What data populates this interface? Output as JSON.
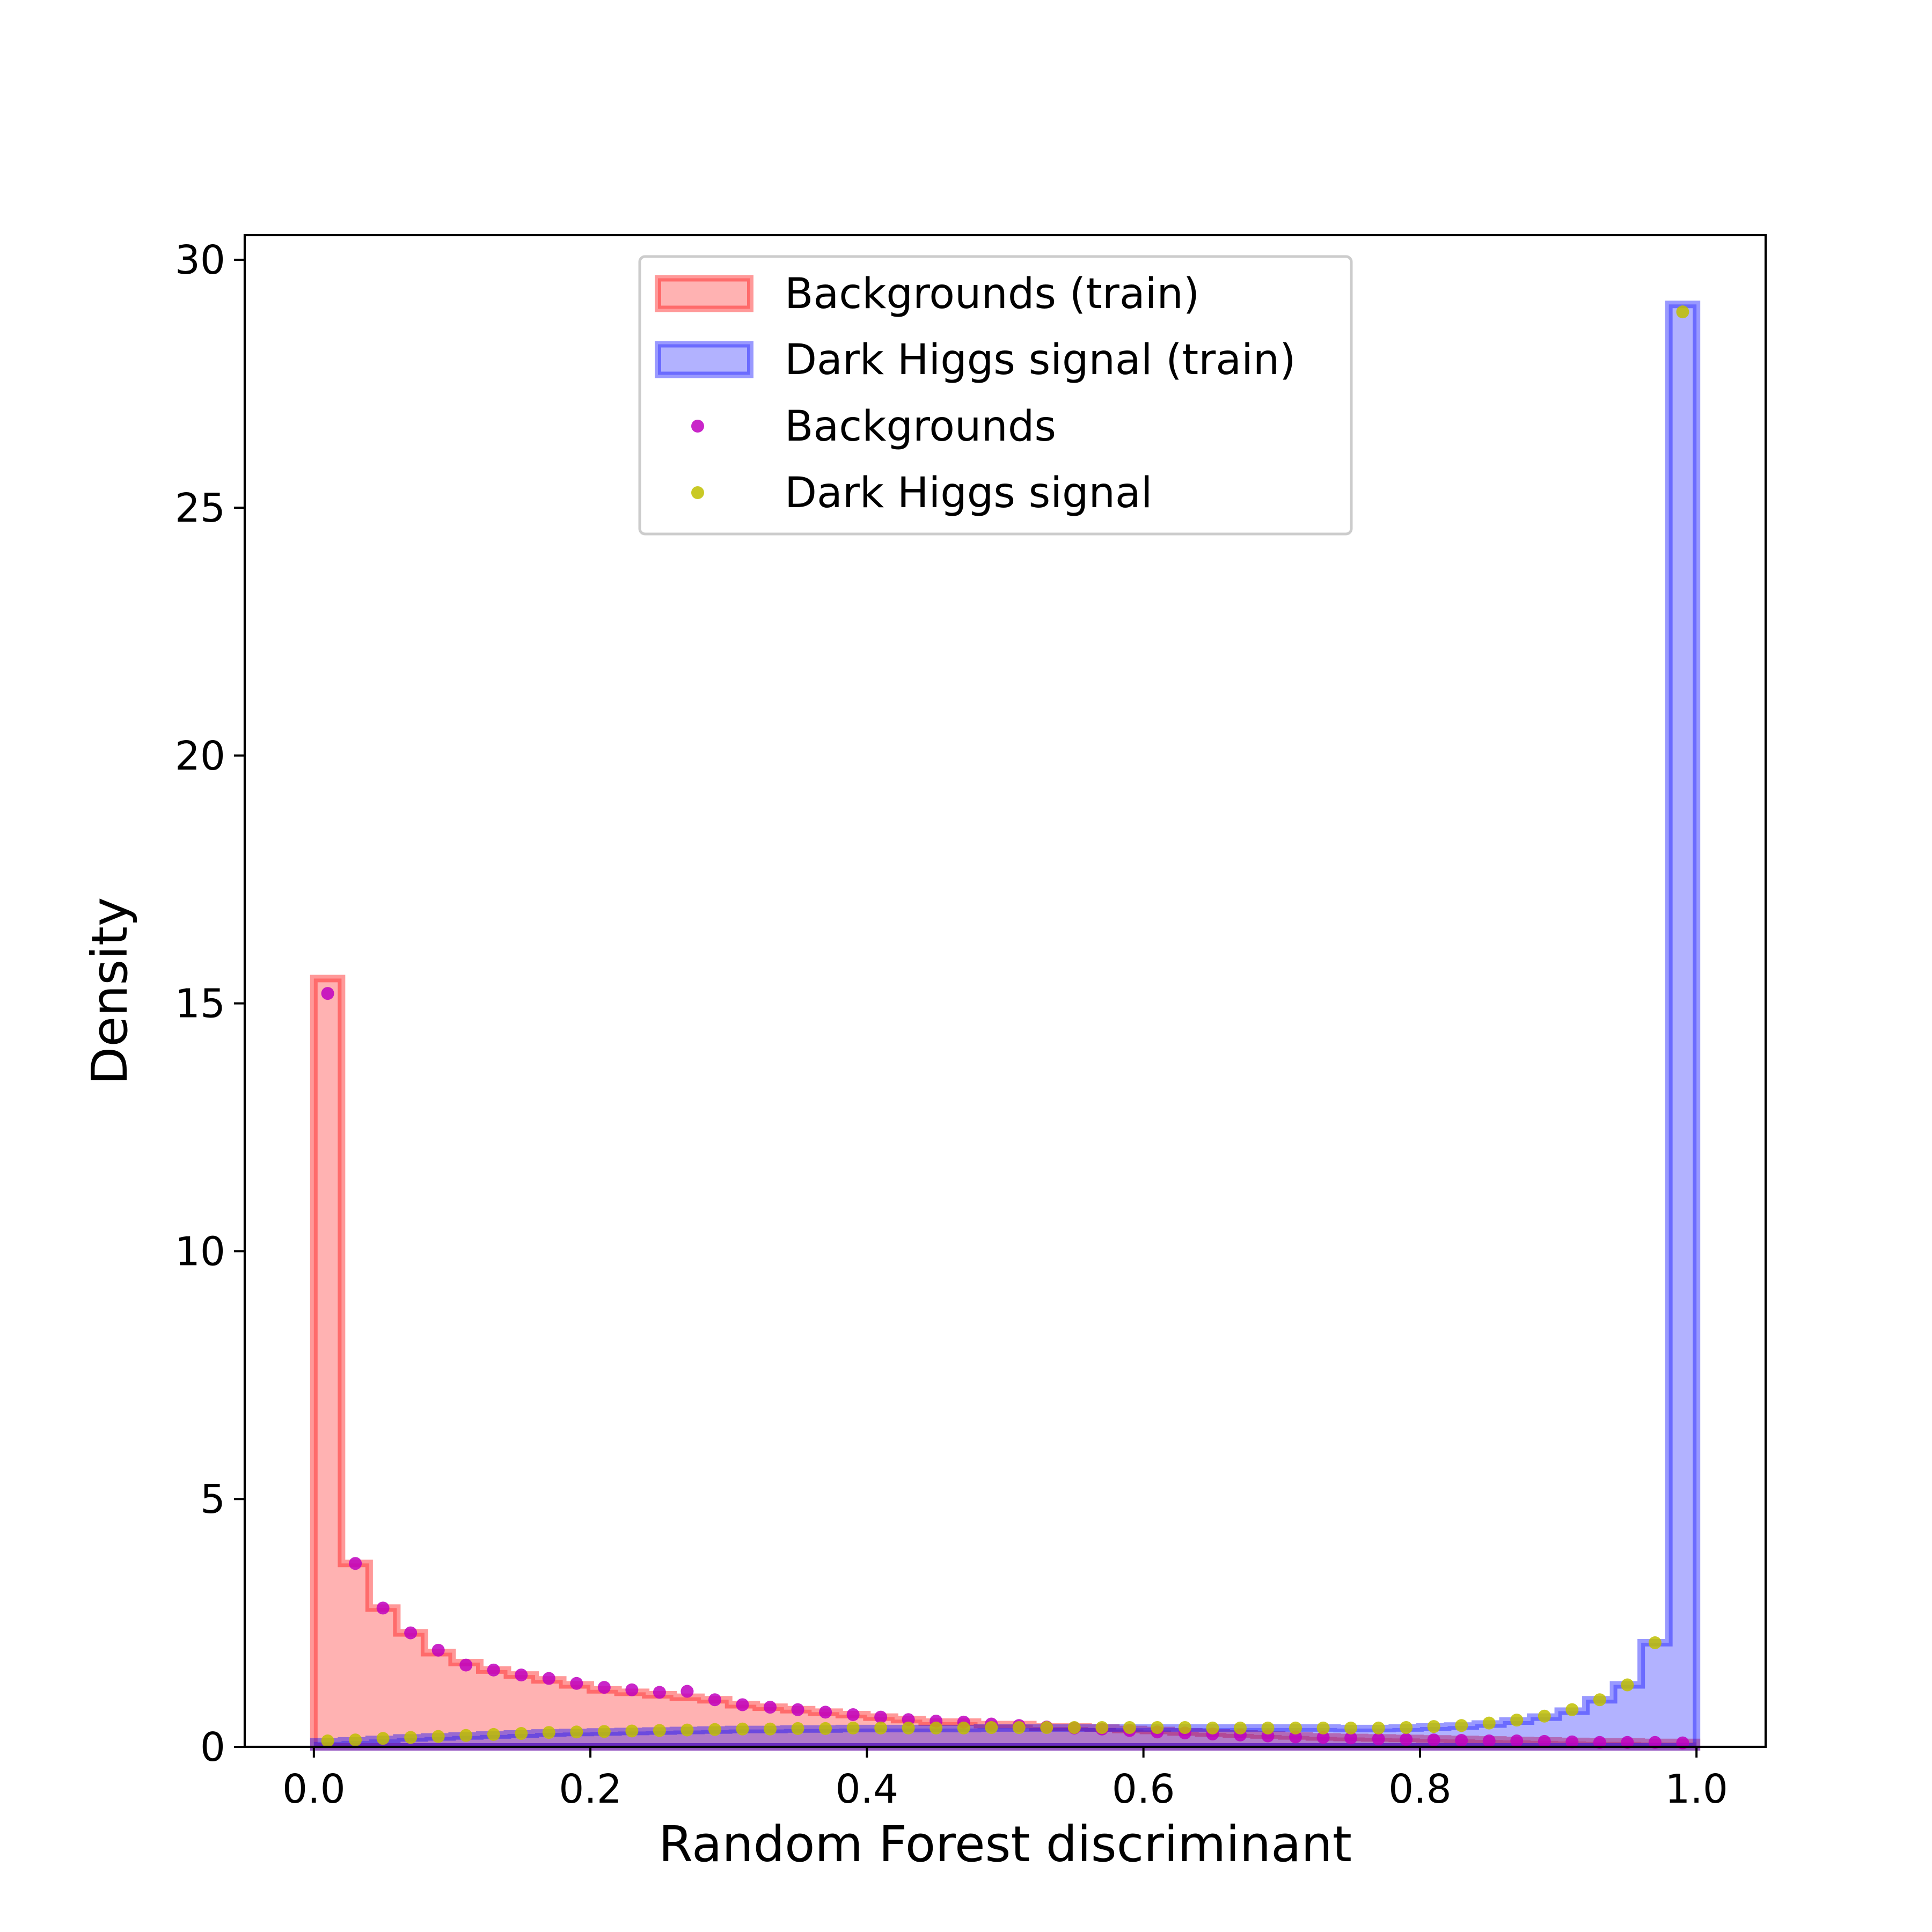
{
  "chart_data": {
    "type": "bar",
    "xlabel": "Random Forest discriminant",
    "ylabel": "Density",
    "xlim": [
      -0.05,
      1.05
    ],
    "ylim": [
      0,
      30.5
    ],
    "xticks": [
      0.0,
      0.2,
      0.4,
      0.6,
      0.8,
      1.0
    ],
    "xtick_labels": [
      "0.0",
      "0.2",
      "0.4",
      "0.6",
      "0.8",
      "1.0"
    ],
    "yticks": [
      0,
      5,
      10,
      15,
      20,
      25,
      30
    ],
    "ytick_labels": [
      "0",
      "5",
      "10",
      "15",
      "20",
      "25",
      "30"
    ],
    "grid": false,
    "legend_position": "upper-center",
    "bin_edges": [
      0,
      0.02,
      0.04,
      0.06,
      0.08,
      0.1,
      0.12,
      0.14,
      0.16,
      0.18,
      0.2,
      0.22,
      0.24,
      0.26,
      0.28,
      0.3,
      0.32,
      0.34,
      0.36,
      0.38,
      0.4,
      0.42,
      0.44,
      0.46,
      0.48,
      0.5,
      0.52,
      0.54,
      0.56,
      0.58,
      0.6,
      0.62,
      0.64,
      0.66,
      0.68,
      0.7,
      0.72,
      0.74,
      0.76,
      0.78,
      0.8,
      0.82,
      0.84,
      0.86,
      0.88,
      0.9,
      0.92,
      0.94,
      0.96,
      0.98,
      1.0
    ],
    "histograms": [
      {
        "name": "Backgrounds (train)",
        "fill": "#ff0000",
        "fill_opacity": 0.3,
        "edge": "#ff0000",
        "edge_opacity": 0.4,
        "values": [
          15.5,
          3.7,
          2.8,
          2.3,
          1.9,
          1.7,
          1.55,
          1.45,
          1.35,
          1.25,
          1.15,
          1.1,
          1.05,
          1.0,
          0.95,
          0.85,
          0.8,
          0.75,
          0.7,
          0.65,
          0.6,
          0.55,
          0.5,
          0.5,
          0.45,
          0.45,
          0.4,
          0.4,
          0.38,
          0.35,
          0.33,
          0.3,
          0.28,
          0.26,
          0.24,
          0.22,
          0.2,
          0.19,
          0.18,
          0.17,
          0.16,
          0.15,
          0.14,
          0.13,
          0.12,
          0.11,
          0.1,
          0.1,
          0.09,
          0.09
        ]
      },
      {
        "name": "Dark Higgs signal (train)",
        "fill": "#0000ff",
        "fill_opacity": 0.3,
        "edge": "#0000ff",
        "edge_opacity": 0.4,
        "values": [
          0.1,
          0.12,
          0.15,
          0.18,
          0.2,
          0.22,
          0.24,
          0.26,
          0.28,
          0.29,
          0.3,
          0.31,
          0.32,
          0.33,
          0.34,
          0.35,
          0.35,
          0.36,
          0.36,
          0.37,
          0.37,
          0.37,
          0.37,
          0.37,
          0.38,
          0.38,
          0.38,
          0.38,
          0.38,
          0.38,
          0.38,
          0.38,
          0.38,
          0.38,
          0.38,
          0.38,
          0.38,
          0.37,
          0.37,
          0.38,
          0.4,
          0.42,
          0.46,
          0.52,
          0.6,
          0.72,
          0.95,
          1.25,
          2.1,
          29.1
        ]
      }
    ],
    "scatter": [
      {
        "name": "Backgrounds",
        "color": "#bf00bf",
        "x": [
          0.01,
          0.03,
          0.05,
          0.07,
          0.09,
          0.11,
          0.13,
          0.15,
          0.17,
          0.19,
          0.21,
          0.23,
          0.25,
          0.27,
          0.29,
          0.31,
          0.33,
          0.35,
          0.37,
          0.39,
          0.41,
          0.43,
          0.45,
          0.47,
          0.49,
          0.51,
          0.53,
          0.55,
          0.57,
          0.59,
          0.61,
          0.63,
          0.65,
          0.67,
          0.69,
          0.71,
          0.73,
          0.75,
          0.77,
          0.79,
          0.81,
          0.83,
          0.85,
          0.87,
          0.89,
          0.91,
          0.93,
          0.95,
          0.97,
          0.99
        ],
        "y": [
          15.2,
          3.7,
          2.8,
          2.3,
          1.95,
          1.65,
          1.55,
          1.45,
          1.38,
          1.28,
          1.2,
          1.15,
          1.1,
          1.12,
          0.95,
          0.85,
          0.8,
          0.75,
          0.7,
          0.65,
          0.6,
          0.55,
          0.52,
          0.5,
          0.46,
          0.43,
          0.4,
          0.38,
          0.36,
          0.33,
          0.3,
          0.28,
          0.26,
          0.24,
          0.22,
          0.2,
          0.19,
          0.18,
          0.16,
          0.15,
          0.14,
          0.13,
          0.12,
          0.12,
          0.11,
          0.1,
          0.09,
          0.09,
          0.09,
          0.08
        ]
      },
      {
        "name": "Dark Higgs signal",
        "color": "#bfbf00",
        "x": [
          0.01,
          0.03,
          0.05,
          0.07,
          0.09,
          0.11,
          0.13,
          0.15,
          0.17,
          0.19,
          0.21,
          0.23,
          0.25,
          0.27,
          0.29,
          0.31,
          0.33,
          0.35,
          0.37,
          0.39,
          0.41,
          0.43,
          0.45,
          0.47,
          0.49,
          0.51,
          0.53,
          0.55,
          0.57,
          0.59,
          0.61,
          0.63,
          0.65,
          0.67,
          0.69,
          0.71,
          0.73,
          0.75,
          0.77,
          0.79,
          0.81,
          0.83,
          0.85,
          0.87,
          0.89,
          0.91,
          0.93,
          0.95,
          0.97,
          0.99
        ],
        "y": [
          0.12,
          0.14,
          0.17,
          0.19,
          0.21,
          0.23,
          0.25,
          0.27,
          0.29,
          0.3,
          0.31,
          0.32,
          0.33,
          0.34,
          0.35,
          0.36,
          0.36,
          0.37,
          0.37,
          0.38,
          0.38,
          0.38,
          0.38,
          0.38,
          0.39,
          0.39,
          0.39,
          0.39,
          0.39,
          0.39,
          0.39,
          0.39,
          0.38,
          0.38,
          0.38,
          0.38,
          0.38,
          0.38,
          0.38,
          0.39,
          0.41,
          0.43,
          0.48,
          0.54,
          0.62,
          0.75,
          0.95,
          1.25,
          2.1,
          28.95
        ]
      }
    ]
  }
}
